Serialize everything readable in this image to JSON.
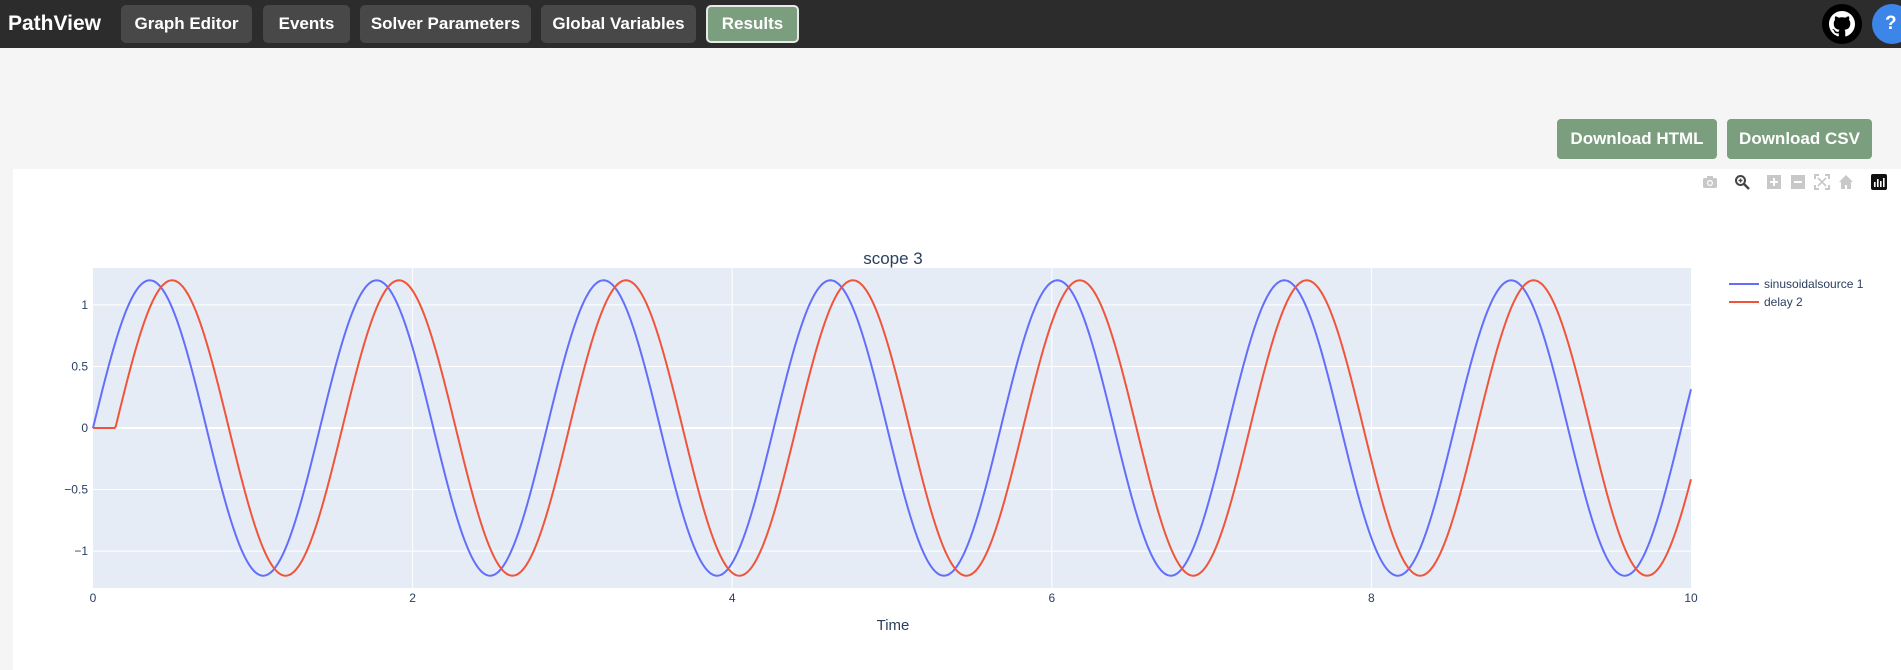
{
  "app": {
    "brand": "PathView",
    "nav": [
      {
        "label": "Graph Editor",
        "active": false
      },
      {
        "label": "Events",
        "active": false
      },
      {
        "label": "Solver Parameters",
        "active": false
      },
      {
        "label": "Global Variables",
        "active": false
      },
      {
        "label": "Results",
        "active": true
      }
    ],
    "help_label": "?",
    "icons": {
      "github": "github-icon",
      "help": "help-icon"
    }
  },
  "actions": {
    "download_html": "Download HTML",
    "download_csv": "Download CSV"
  },
  "modebar": [
    "camera-icon",
    "zoom-icon",
    "zoom-in-icon",
    "zoom-out-icon",
    "autoscale-icon",
    "home-icon",
    "plotly-logo-icon"
  ],
  "colors": {
    "accent": "#7a9e7e",
    "topbar": "#2c2c2c",
    "plot_bg": "#e5ecf6",
    "series_1": "#636efa",
    "series_2": "#ef553b"
  },
  "chart_data": {
    "type": "line",
    "title": "scope 3",
    "xlabel": "Time",
    "ylabel": "",
    "xlim": [
      0,
      10
    ],
    "ylim": [
      -1.3,
      1.3
    ],
    "x_ticks": [
      "0",
      "2",
      "4",
      "6",
      "8",
      "10"
    ],
    "y_ticks": [
      "1",
      "0.5",
      "0",
      "−0.5",
      "−1"
    ],
    "grid": true,
    "legend": "right",
    "series": [
      {
        "name": "sinusoidalsource 1",
        "color": "#636efa",
        "amplitude": 1.2,
        "period": 1.42,
        "delay": 0
      },
      {
        "name": "delay 2",
        "color": "#ef553b",
        "amplitude": 1.2,
        "period": 1.42,
        "delay": 0.14
      }
    ]
  }
}
